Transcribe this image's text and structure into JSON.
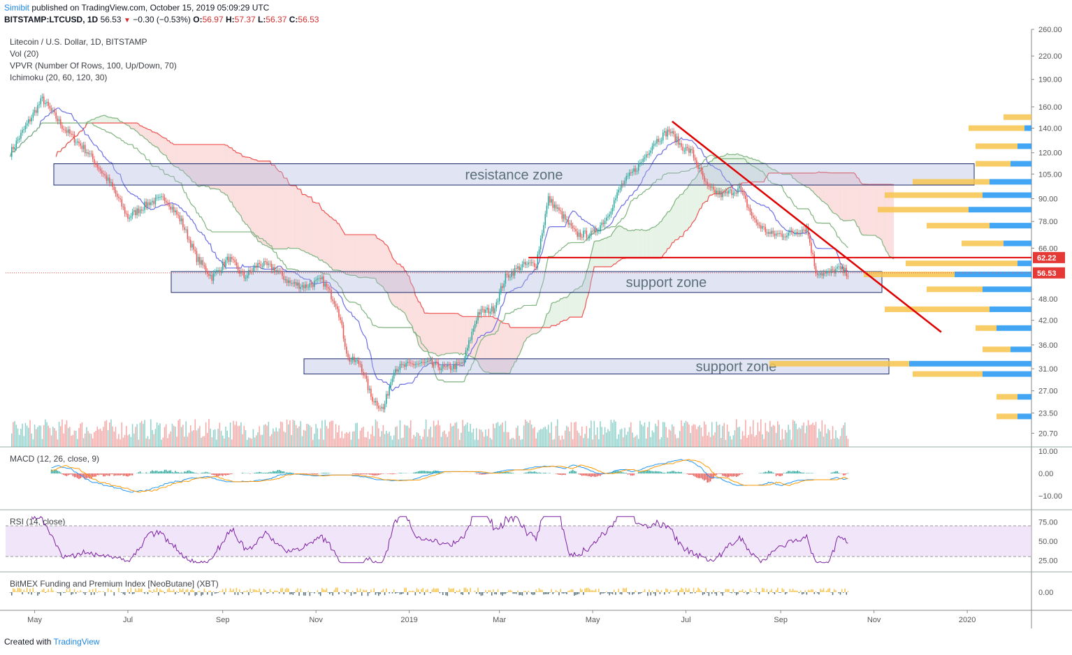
{
  "header": {
    "author": "Simibit",
    "published_text": "published on TradingView.com, October 15, 2019 05:09:29 UTC",
    "symbol": "BITSTAMP:LTCUSD, 1D",
    "last": "56.53",
    "change": "−0.30 (−0.53%)",
    "open_label": "O:",
    "open": "56.97",
    "high_label": "H:",
    "high": "57.37",
    "low_label": "L:",
    "low": "56.37",
    "close_label": "C:",
    "close": "56.53"
  },
  "legend": {
    "title": "Litecoin / U.S. Dollar, 1D, BITSTAMP",
    "vol": "Vol (20)",
    "vpvr": "VPVR (Number Of Rows, 100, Up/Down, 70)",
    "ichimoku": "Ichimoku (20, 60, 120, 30)"
  },
  "indicators": {
    "macd": "MACD (12, 26, close, 9)",
    "rsi": "RSI (14, close)",
    "bitmex": "BitMEX Funding and Premium Index [NeoButane] (XBT)"
  },
  "footer": {
    "prefix": "Created with",
    "brand": "TradingView"
  },
  "colors": {
    "up": "#26a69a",
    "down": "#ef5350",
    "tenkan": "#6a6ee6",
    "kijun": "#7fb37f",
    "cloud_bear": "#f4a3a3",
    "cloud_bull": "#b6dcb6",
    "zone": "#aab4dc",
    "trend": "#e00000",
    "vpvr_up": "#2196f3",
    "vpvr_down": "#f7c44e",
    "rsi_band": "#e8d4f5"
  },
  "chart_data": {
    "type": "candlestick",
    "y_scale": "log",
    "price_axis_ticks": [
      "260.00",
      "220.00",
      "190.00",
      "160.00",
      "140.00",
      "120.00",
      "105.00",
      "90.00",
      "78.00",
      "66.00",
      "56.53",
      "48.00",
      "42.00",
      "36.00",
      "31.00",
      "27.00",
      "23.50",
      "20.70"
    ],
    "price_tags": [
      {
        "label": "62.22",
        "value": 62.22
      },
      {
        "label": "56.53",
        "value": 56.53
      }
    ],
    "x_axis_ticks": [
      "May",
      "Jul",
      "Sep",
      "Nov",
      "2019",
      "Mar",
      "May",
      "Jul",
      "Sep",
      "Nov",
      "2020"
    ],
    "zones": [
      {
        "label": "resistance zone",
        "low": 98,
        "high": 112
      },
      {
        "label": "support zone",
        "low": 50,
        "high": 57
      },
      {
        "label": "support zone",
        "low": 30,
        "high": 33
      }
    ],
    "horizontal_line": 62.22,
    "trendline": {
      "from": {
        "date": "2019-06-22",
        "price": 146
      },
      "to": {
        "date": "2019-12-15",
        "price": 39
      }
    },
    "close_path": [
      [
        "2018-04-15",
        120
      ],
      [
        "2018-04-28",
        148
      ],
      [
        "2018-05-06",
        168
      ],
      [
        "2018-05-20",
        140
      ],
      [
        "2018-06-05",
        120
      ],
      [
        "2018-06-20",
        98
      ],
      [
        "2018-07-01",
        80
      ],
      [
        "2018-07-15",
        88
      ],
      [
        "2018-07-26",
        90
      ],
      [
        "2018-08-05",
        78
      ],
      [
        "2018-08-15",
        62
      ],
      [
        "2018-08-25",
        55
      ],
      [
        "2018-09-05",
        62
      ],
      [
        "2018-09-15",
        55
      ],
      [
        "2018-09-25",
        60
      ],
      [
        "2018-10-05",
        58
      ],
      [
        "2018-10-15",
        53
      ],
      [
        "2018-10-25",
        52
      ],
      [
        "2018-11-05",
        54
      ],
      [
        "2018-11-15",
        46
      ],
      [
        "2018-11-22",
        33
      ],
      [
        "2018-11-30",
        32
      ],
      [
        "2018-12-07",
        26
      ],
      [
        "2018-12-15",
        24
      ],
      [
        "2018-12-22",
        31
      ],
      [
        "2019-01-05",
        32
      ],
      [
        "2019-01-15",
        32
      ],
      [
        "2019-01-25",
        31
      ],
      [
        "2019-02-05",
        32
      ],
      [
        "2019-02-15",
        44
      ],
      [
        "2019-02-25",
        45
      ],
      [
        "2019-03-05",
        55
      ],
      [
        "2019-03-15",
        59
      ],
      [
        "2019-03-25",
        60
      ],
      [
        "2019-04-02",
        90
      ],
      [
        "2019-04-10",
        82
      ],
      [
        "2019-04-20",
        72
      ],
      [
        "2019-05-01",
        72
      ],
      [
        "2019-05-10",
        80
      ],
      [
        "2019-05-20",
        98
      ],
      [
        "2019-06-01",
        112
      ],
      [
        "2019-06-10",
        128
      ],
      [
        "2019-06-20",
        138
      ],
      [
        "2019-06-28",
        125
      ],
      [
        "2019-07-05",
        120
      ],
      [
        "2019-07-15",
        96
      ],
      [
        "2019-07-25",
        92
      ],
      [
        "2019-08-05",
        96
      ],
      [
        "2019-08-15",
        78
      ],
      [
        "2019-08-25",
        72
      ],
      [
        "2019-09-05",
        72
      ],
      [
        "2019-09-18",
        75
      ],
      [
        "2019-09-24",
        57
      ],
      [
        "2019-10-01",
        56
      ],
      [
        "2019-10-08",
        58
      ],
      [
        "2019-10-15",
        56.53
      ]
    ],
    "vpvr_profile": [
      {
        "price": 150,
        "up": 0,
        "down": 40
      },
      {
        "price": 140,
        "up": 10,
        "down": 80
      },
      {
        "price": 125,
        "up": 20,
        "down": 60
      },
      {
        "price": 112,
        "up": 30,
        "down": 50
      },
      {
        "price": 100,
        "up": 60,
        "down": 110
      },
      {
        "price": 92,
        "up": 70,
        "down": 140
      },
      {
        "price": 84,
        "up": 90,
        "down": 130
      },
      {
        "price": 76,
        "up": 60,
        "down": 90
      },
      {
        "price": 68,
        "up": 40,
        "down": 60
      },
      {
        "price": 60,
        "up": 20,
        "down": 160
      },
      {
        "price": 56,
        "up": 110,
        "down": 130
      },
      {
        "price": 51,
        "up": 70,
        "down": 80
      },
      {
        "price": 45,
        "up": 60,
        "down": 150
      },
      {
        "price": 40,
        "up": 50,
        "down": 30
      },
      {
        "price": 35,
        "up": 30,
        "down": 40
      },
      {
        "price": 32,
        "up": 175,
        "down": 200
      },
      {
        "price": 30,
        "up": 70,
        "down": 100
      },
      {
        "price": 26,
        "up": 20,
        "down": 30
      },
      {
        "price": 23,
        "up": 20,
        "down": 30
      }
    ],
    "macd_axis_ticks": [
      "10.00",
      "0.00",
      "−10.00"
    ],
    "rsi_axis_ticks": [
      "75.00",
      "50.00",
      "25.00"
    ],
    "rsi_band": [
      30,
      70
    ],
    "bitmex_axis_ticks": [
      "0.00"
    ]
  }
}
